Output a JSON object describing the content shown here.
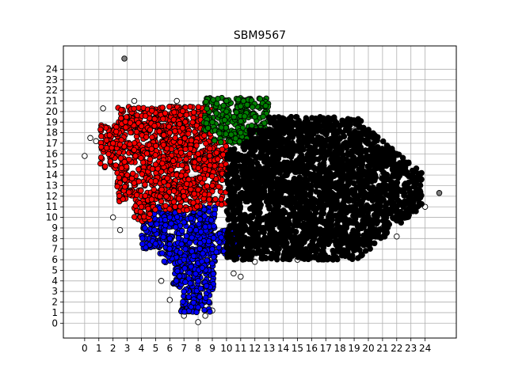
{
  "chart_data": {
    "type": "scatter",
    "title": "SBM9567",
    "xlabel": "",
    "ylabel": "",
    "xlim": [
      -1.5,
      26.2
    ],
    "ylim": [
      -1.4,
      26.2
    ],
    "grid": true,
    "x_ticks": [
      0,
      1,
      2,
      3,
      4,
      5,
      6,
      7,
      8,
      9,
      10,
      11,
      12,
      13,
      14,
      15,
      16,
      17,
      18,
      19,
      20,
      21,
      22,
      23,
      24
    ],
    "y_ticks": [
      0,
      1,
      2,
      3,
      4,
      5,
      6,
      7,
      8,
      9,
      10,
      11,
      12,
      13,
      14,
      15,
      16,
      17,
      18,
      19,
      20,
      21,
      22,
      23,
      24
    ],
    "series": [
      {
        "name": "cluster-black",
        "color": "#000000",
        "region": {
          "x": [
            10,
            24
          ],
          "y": [
            6,
            19.5
          ]
        },
        "sample_points": [
          [
            15,
            13
          ],
          [
            17,
            12
          ],
          [
            20,
            11
          ],
          [
            22,
            12
          ],
          [
            13,
            15
          ],
          [
            16,
            18
          ],
          [
            11,
            9
          ],
          [
            19,
            14
          ],
          [
            23,
            12
          ],
          [
            14,
            8
          ]
        ]
      },
      {
        "name": "cluster-red",
        "color": "#ff0000",
        "region": {
          "x": [
            1,
            10
          ],
          "y": [
            9.5,
            20.5
          ]
        },
        "sample_points": [
          [
            5,
            15
          ],
          [
            6,
            18
          ],
          [
            3,
            14
          ],
          [
            7,
            12
          ],
          [
            8,
            16
          ],
          [
            2,
            17
          ],
          [
            4,
            11
          ],
          [
            9,
            13
          ]
        ]
      },
      {
        "name": "cluster-blue",
        "color": "#0000ff",
        "region": {
          "x": [
            4,
            11
          ],
          "y": [
            1,
            11
          ]
        },
        "sample_points": [
          [
            6,
            8
          ],
          [
            7,
            6
          ],
          [
            8,
            4
          ],
          [
            6,
            10
          ],
          [
            9,
            7
          ],
          [
            7,
            3
          ],
          [
            8,
            1.5
          ],
          [
            5,
            7.5
          ]
        ]
      },
      {
        "name": "cluster-green",
        "color": "#008000",
        "region": {
          "x": [
            8,
            13
          ],
          "y": [
            17,
            21.5
          ]
        },
        "sample_points": [
          [
            9,
            19
          ],
          [
            10,
            20
          ],
          [
            11,
            18
          ],
          [
            12,
            19.5
          ],
          [
            10,
            21
          ],
          [
            11,
            20.5
          ]
        ]
      },
      {
        "name": "outliers-white",
        "color": "#ffffff",
        "sample_points": [
          [
            0,
            15.8
          ],
          [
            0.4,
            17.5
          ],
          [
            0.8,
            17.2
          ],
          [
            1.3,
            20.3
          ],
          [
            2,
            10
          ],
          [
            2.5,
            8.8
          ],
          [
            5.4,
            4
          ],
          [
            6,
            2.2
          ],
          [
            7,
            0.7
          ],
          [
            8,
            0.1
          ],
          [
            8.5,
            0.7
          ],
          [
            9,
            1.2
          ],
          [
            10.5,
            4.7
          ],
          [
            12,
            5.8
          ],
          [
            15,
            6
          ],
          [
            18,
            6.5
          ],
          [
            20,
            8
          ],
          [
            21,
            9
          ],
          [
            22,
            8.2
          ],
          [
            24,
            11
          ],
          [
            23.6,
            12
          ],
          [
            21,
            14
          ],
          [
            19,
            15.5
          ],
          [
            20,
            17.3
          ],
          [
            19,
            18.2
          ],
          [
            11,
            4.4
          ],
          [
            6.5,
            21
          ],
          [
            3.5,
            21
          ]
        ]
      },
      {
        "name": "outliers-gray",
        "color": "#808080",
        "sample_points": [
          [
            2.8,
            25
          ],
          [
            25,
            12.3
          ]
        ]
      }
    ]
  }
}
